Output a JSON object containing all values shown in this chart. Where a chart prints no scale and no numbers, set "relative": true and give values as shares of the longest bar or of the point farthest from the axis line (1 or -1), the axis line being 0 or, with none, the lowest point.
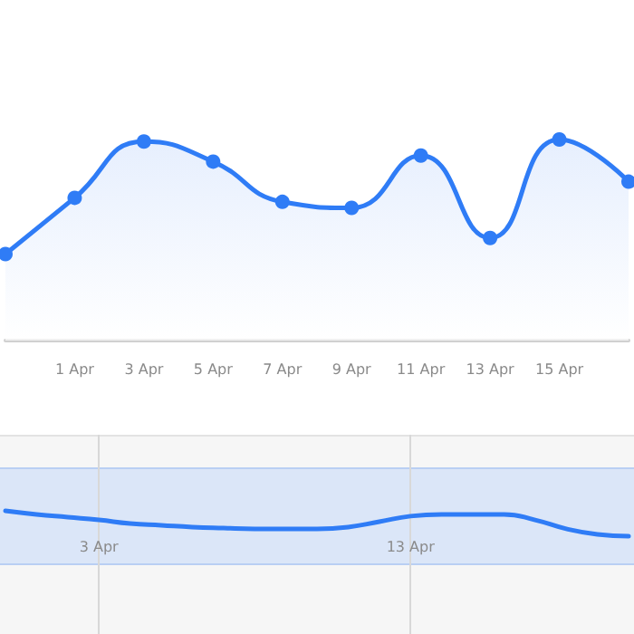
{
  "chart_data": [
    {
      "type": "area",
      "relative": true,
      "categories": [
        null,
        "1 Apr",
        "3 Apr",
        "5 Apr",
        "7 Apr",
        "9 Apr",
        "11 Apr",
        "13 Apr",
        "15 Apr",
        null
      ],
      "series": [
        {
          "color": "#2f7cf6",
          "values": [
            0.43,
            0.71,
            0.99,
            0.89,
            0.69,
            0.66,
            0.92,
            0.51,
            1.0,
            0.79
          ]
        }
      ],
      "marker": "circle",
      "grid": false
    },
    {
      "type": "line",
      "relative": true,
      "categories": [
        null,
        null,
        null,
        "3 Apr",
        null,
        null,
        null,
        null,
        null,
        null,
        null,
        null,
        null,
        "13 Apr",
        null,
        null,
        null,
        null,
        null,
        null,
        null
      ],
      "series": [
        {
          "color": "#2f7cf6",
          "values": [
            1,
            0.86,
            0.75,
            0.64,
            0.5,
            0.43,
            0.36,
            0.32,
            0.29,
            0.29,
            0.29,
            0.36,
            0.57,
            0.79,
            0.86,
            0.86,
            0.86,
            0.64,
            0.29,
            0.07,
            0
          ]
        }
      ],
      "marker": "none",
      "grid": "x"
    }
  ]
}
